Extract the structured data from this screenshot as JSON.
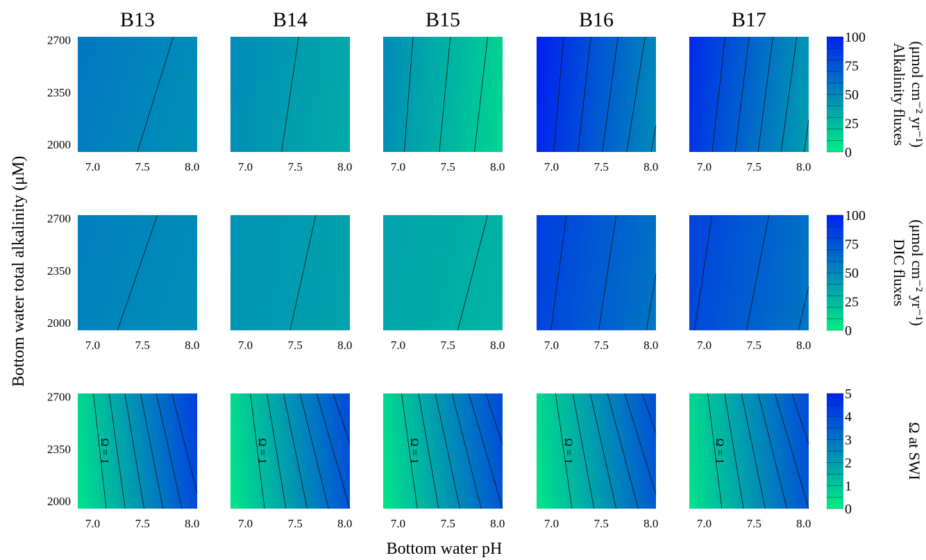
{
  "colors": {
    "low": "#00ee84",
    "high": "#0020f0"
  },
  "chart_data": {
    "type": "heatmap",
    "columns": [
      "B13",
      "B14",
      "B15",
      "B16",
      "B17"
    ],
    "xlabel": "Bottom water pH",
    "ylabel": "Bottom water total alkalinity (μM)",
    "xlim": [
      6.85,
      8.05
    ],
    "ylim": [
      1950,
      2720
    ],
    "xticks": [
      {
        "v": 7.0,
        "label": "7.0"
      },
      {
        "v": 7.5,
        "label": "7.5"
      },
      {
        "v": 8.0,
        "label": "8.0"
      }
    ],
    "yticks": [
      {
        "v": 2000,
        "label": "2000"
      },
      {
        "v": 2350,
        "label": "2350"
      },
      {
        "v": 2700,
        "label": "2700"
      }
    ],
    "rows": [
      {
        "key": "alkalinity",
        "colorbar": {
          "title_lines": [
            "Alkalinity fluxes",
            "(μmol cm⁻² yr⁻¹)"
          ],
          "min": 0,
          "max": 100,
          "levels": [
            0,
            10,
            20,
            30,
            40,
            50,
            60,
            70,
            80,
            90,
            100
          ],
          "ticks": [
            {
              "v": 0,
              "label": "0"
            },
            {
              "v": 25,
              "label": "25"
            },
            {
              "v": 50,
              "label": "50"
            },
            {
              "v": 75,
              "label": "75"
            },
            {
              "v": 100,
              "label": "100"
            }
          ]
        },
        "fields": [
          {
            "v00": 55,
            "v10": 45,
            "v01": 58,
            "v11": 48,
            "contours": [
              {
                "level": 50
              },
              {
                "level": 40
              }
            ],
            "contour_label": ""
          },
          {
            "v00": 46,
            "v10": 32,
            "v01": 48,
            "v11": 34,
            "contours": [
              {
                "level": 40
              }
            ],
            "contour_label": ""
          },
          {
            "v00": 46,
            "v10": 12,
            "v01": 48,
            "v11": 16,
            "contours": [
              {
                "level": 40
              },
              {
                "level": 30
              },
              {
                "level": 20
              }
            ],
            "contour_label": ""
          },
          {
            "v00": 97,
            "v10": 48,
            "v01": 100,
            "v11": 56,
            "contours": [
              {
                "level": 90
              },
              {
                "level": 80
              },
              {
                "level": 70
              },
              {
                "level": 60
              },
              {
                "level": 50
              }
            ],
            "contour_label": ""
          },
          {
            "v00": 90,
            "v10": 38,
            "v01": 95,
            "v11": 45,
            "contours": [
              {
                "level": 80
              },
              {
                "level": 70
              },
              {
                "level": 60
              },
              {
                "level": 50
              },
              {
                "level": 40
              }
            ],
            "contour_label": ""
          }
        ]
      },
      {
        "key": "dic",
        "colorbar": {
          "title_lines": [
            "DIC fluxes",
            "(μmol cm⁻² yr⁻¹)"
          ],
          "min": 0,
          "max": 100,
          "levels": [
            0,
            10,
            20,
            30,
            40,
            50,
            60,
            70,
            80,
            90,
            100
          ],
          "ticks": [
            {
              "v": 0,
              "label": "0"
            },
            {
              "v": 25,
              "label": "25"
            },
            {
              "v": 50,
              "label": "50"
            },
            {
              "v": 75,
              "label": "75"
            },
            {
              "v": 100,
              "label": "100"
            }
          ]
        },
        "fields": [
          {
            "v00": 52,
            "v10": 46,
            "v01": 54,
            "v11": 48,
            "contours": [
              {
                "level": 50
              }
            ],
            "contour_label": ""
          },
          {
            "v00": 44,
            "v10": 36,
            "v01": 45,
            "v11": 38,
            "contours": [
              {
                "level": 40
              }
            ],
            "contour_label": ""
          },
          {
            "v00": 35,
            "v10": 27,
            "v01": 37,
            "v11": 29,
            "contours": [
              {
                "level": 30
              }
            ],
            "contour_label": ""
          },
          {
            "v00": 83,
            "v10": 58,
            "v01": 86,
            "v11": 62,
            "contours": [
              {
                "level": 80
              },
              {
                "level": 70
              },
              {
                "level": 60
              }
            ],
            "contour_label": ""
          },
          {
            "v00": 81,
            "v10": 58,
            "v01": 84,
            "v11": 63,
            "contours": [
              {
                "level": 80
              },
              {
                "level": 70
              },
              {
                "level": 60
              }
            ],
            "contour_label": ""
          }
        ]
      },
      {
        "key": "omega",
        "colorbar": {
          "title_lines": [
            "Ω at SWI"
          ],
          "min": 0,
          "max": 5,
          "levels": [
            0,
            0.5,
            1,
            1.5,
            2,
            2.5,
            3,
            3.5,
            4,
            4.5,
            5
          ],
          "ticks": [
            {
              "v": 0,
              "label": "0"
            },
            {
              "v": 1,
              "label": "1"
            },
            {
              "v": 2,
              "label": "2"
            },
            {
              "v": 3,
              "label": "3"
            },
            {
              "v": 4,
              "label": "4"
            },
            {
              "v": 5,
              "label": "5"
            }
          ]
        },
        "fields": [
          {
            "v00": 0.25,
            "v10": 3.4,
            "v01": 0.5,
            "v11": 4.3,
            "contours": [
              {
                "level": 1
              },
              {
                "level": 1.5
              },
              {
                "level": 2
              },
              {
                "level": 2.5
              },
              {
                "level": 3
              },
              {
                "level": 3.5
              }
            ],
            "contour_label": "Ω = 1"
          },
          {
            "v00": 0.2,
            "v10": 3.0,
            "v01": 0.4,
            "v11": 4.0,
            "contours": [
              {
                "level": 1
              },
              {
                "level": 1.5
              },
              {
                "level": 2
              },
              {
                "level": 2.5
              },
              {
                "level": 3
              },
              {
                "level": 3.5
              }
            ],
            "contour_label": "Ω = 1"
          },
          {
            "v00": 0.2,
            "v10": 3.0,
            "v01": 0.45,
            "v11": 4.0,
            "contours": [
              {
                "level": 1
              },
              {
                "level": 1.5
              },
              {
                "level": 2
              },
              {
                "level": 2.5
              },
              {
                "level": 3
              },
              {
                "level": 3.5
              }
            ],
            "contour_label": "Ω = 1"
          },
          {
            "v00": 0.2,
            "v10": 2.9,
            "v01": 0.45,
            "v11": 3.9,
            "contours": [
              {
                "level": 1
              },
              {
                "level": 1.5
              },
              {
                "level": 2
              },
              {
                "level": 2.5
              },
              {
                "level": 3
              },
              {
                "level": 3.5
              }
            ],
            "contour_label": "Ω = 1"
          },
          {
            "v00": 0.25,
            "v10": 3.0,
            "v01": 0.45,
            "v11": 4.0,
            "contours": [
              {
                "level": 1
              },
              {
                "level": 1.5
              },
              {
                "level": 2
              },
              {
                "level": 2.5
              },
              {
                "level": 3
              },
              {
                "level": 3.5
              }
            ],
            "contour_label": "Ω = 1"
          }
        ]
      }
    ]
  }
}
